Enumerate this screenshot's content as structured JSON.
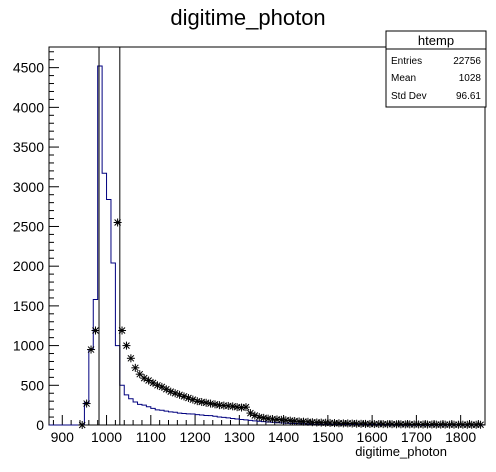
{
  "chart_data": {
    "type": "histogram",
    "title": "digitime_photon",
    "xlabel": "digitime_photon",
    "ylabel": "",
    "xlim": [
      870,
      1855
    ],
    "ylim": [
      0,
      4760
    ],
    "x_ticks": [
      "900",
      "1000",
      "1100",
      "1200",
      "1300",
      "1400",
      "1500",
      "1600",
      "1700",
      "1800"
    ],
    "y_ticks": [
      "0",
      "500",
      "1000",
      "1500",
      "2000",
      "2500",
      "3000",
      "3500",
      "4000",
      "4500"
    ],
    "bin_width": 10,
    "series": [
      {
        "name": "histogram",
        "style": "step",
        "color": "#00007f",
        "edges": [
          870,
          880,
          890,
          900,
          910,
          920,
          930,
          940,
          950,
          960,
          970,
          980,
          990,
          1000,
          1010,
          1020,
          1030,
          1040,
          1050,
          1060,
          1070,
          1080,
          1090,
          1100,
          1110,
          1120,
          1130,
          1140,
          1150,
          1160,
          1170,
          1180,
          1190,
          1200,
          1210,
          1220,
          1230,
          1240,
          1250,
          1260,
          1270,
          1280,
          1290,
          1300,
          1310,
          1320,
          1330,
          1340,
          1350,
          1360,
          1370,
          1380,
          1390,
          1400,
          1410,
          1420,
          1430,
          1440,
          1450,
          1460,
          1470,
          1480,
          1490,
          1500,
          1510,
          1520,
          1530,
          1540,
          1550,
          1560,
          1570,
          1580,
          1590,
          1600,
          1610,
          1620,
          1630,
          1640,
          1650,
          1660,
          1670,
          1680,
          1690,
          1700,
          1710,
          1720,
          1730,
          1740,
          1750,
          1760,
          1770,
          1780,
          1790,
          1800,
          1810,
          1820,
          1830,
          1840,
          1850
        ],
        "values": [
          0,
          0,
          0,
          0,
          0,
          0,
          0,
          0,
          280,
          950,
          1580,
          4520,
          3170,
          2840,
          2040,
          1000,
          500,
          380,
          330,
          290,
          260,
          250,
          230,
          210,
          190,
          185,
          175,
          165,
          160,
          150,
          145,
          140,
          138,
          130,
          126,
          120,
          118,
          110,
          100,
          96,
          90,
          82,
          76,
          70,
          64,
          58,
          52,
          47,
          42,
          38,
          34,
          30,
          27,
          24,
          21,
          19,
          17,
          15,
          13,
          12,
          11,
          10,
          9,
          8,
          7,
          6,
          6,
          5,
          5,
          4,
          4,
          4,
          3,
          3,
          3,
          3,
          2,
          2,
          2,
          2,
          2,
          2,
          2,
          1,
          1,
          1,
          1,
          1,
          1,
          1,
          1,
          1,
          1,
          1,
          1,
          1,
          1,
          1
        ]
      },
      {
        "name": "markers",
        "style": "star-marker",
        "color": "#000000",
        "x": [
          945,
          955,
          965,
          975,
          1025,
          1035,
          1045,
          1055,
          1065,
          1075,
          1085,
          1095,
          1105,
          1115,
          1125,
          1135,
          1145,
          1155,
          1165,
          1175,
          1185,
          1195,
          1205,
          1215,
          1225,
          1235,
          1245,
          1255,
          1265,
          1275,
          1285,
          1295,
          1305,
          1315,
          1325,
          1335,
          1345,
          1355,
          1365,
          1375,
          1385,
          1395,
          1405,
          1415,
          1425,
          1435,
          1445,
          1455,
          1465,
          1475,
          1485,
          1495,
          1505,
          1515,
          1525,
          1535,
          1545,
          1555,
          1565,
          1575,
          1585,
          1595,
          1605,
          1615,
          1625,
          1635,
          1645,
          1655,
          1665,
          1675,
          1685,
          1695,
          1705,
          1715,
          1725,
          1735,
          1745,
          1755,
          1765,
          1775,
          1785,
          1795,
          1805,
          1815,
          1825,
          1835,
          1845
        ],
        "y": [
          0,
          270,
          950,
          1190,
          2550,
          1190,
          1000,
          840,
          720,
          640,
          590,
          560,
          530,
          500,
          480,
          450,
          420,
          400,
          380,
          360,
          340,
          320,
          300,
          290,
          280,
          270,
          260,
          250,
          245,
          240,
          235,
          225,
          220,
          225,
          150,
          120,
          100,
          90,
          80,
          75,
          70,
          65,
          60,
          55,
          50,
          45,
          42,
          40,
          35,
          32,
          30,
          28,
          26,
          24,
          22,
          20,
          20,
          18,
          16,
          15,
          14,
          13,
          12,
          12,
          11,
          10,
          10,
          9,
          9,
          8,
          8,
          7,
          7,
          6,
          6,
          6,
          5,
          5,
          5,
          4,
          4,
          4,
          4,
          3,
          3,
          3,
          3
        ]
      }
    ],
    "vertical_lines": [
      {
        "x": 983,
        "ymax_to_top": true
      },
      {
        "x": 1030,
        "ymax_to_top": true
      }
    ]
  },
  "stats_box": {
    "name": "htemp",
    "rows": [
      {
        "label": "Entries",
        "value": "22756"
      },
      {
        "label": "Mean",
        "value": "1028"
      },
      {
        "label": "Std Dev",
        "value": "96.61"
      }
    ]
  }
}
